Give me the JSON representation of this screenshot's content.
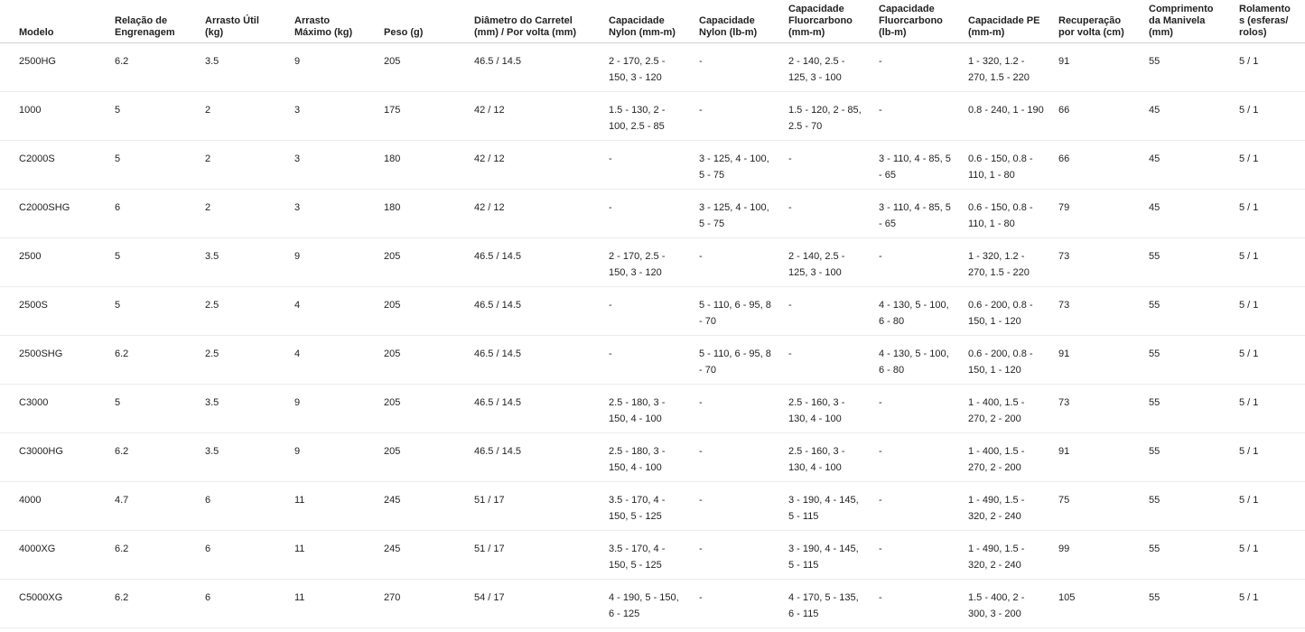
{
  "table": {
    "header": [
      "Modelo",
      "Relação de Engrenagem",
      "Arrasto Útil (kg)",
      "Arrasto Máximo (kg)",
      "Peso (g)",
      "Diâmetro do Carretel (mm) / Por volta (mm)",
      "Capacidade Nylon (mm-m)",
      "Capacidade Nylon (lb-m)",
      "Capacidade Fluorcarbono (mm-m)",
      "Capacidade Fluorcarbono (lb-m)",
      "Capacidade PE (mm-m)",
      "Recuperação por volta (cm)",
      "Comprimento da Manivela (mm)",
      "Rolamentos (esferas/ rolos)"
    ],
    "rows": [
      [
        "2500HG",
        "6.2",
        "3.5",
        "9",
        "205",
        "46.5 / 14.5",
        "2 - 170, 2.5 - 150, 3 - 120",
        "-",
        "2 - 140, 2.5 - 125, 3 - 100",
        "-",
        "1 - 320, 1.2 - 270, 1.5 - 220",
        "91",
        "55",
        "5 / 1"
      ],
      [
        "1000",
        "5",
        "2",
        "3",
        "175",
        "42 / 12",
        "1.5 - 130, 2 - 100, 2.5 - 85",
        "-",
        "1.5 - 120, 2 - 85, 2.5 - 70",
        "-",
        "0.8 - 240, 1 - 190",
        "66",
        "45",
        "5 / 1"
      ],
      [
        "C2000S",
        "5",
        "2",
        "3",
        "180",
        "42 / 12",
        "-",
        "3 - 125, 4 - 100, 5 - 75",
        "-",
        "3 - 110, 4 - 85, 5 - 65",
        "0.6 - 150, 0.8 - 110, 1 - 80",
        "66",
        "45",
        "5 / 1"
      ],
      [
        "C2000SHG",
        "6",
        "2",
        "3",
        "180",
        "42 / 12",
        "-",
        "3 - 125, 4 - 100, 5 - 75",
        "-",
        "3 - 110, 4 - 85, 5 - 65",
        "0.6 - 150, 0.8 - 110, 1 - 80",
        "79",
        "45",
        "5 / 1"
      ],
      [
        "2500",
        "5",
        "3.5",
        "9",
        "205",
        "46.5 / 14.5",
        "2 - 170, 2.5 - 150, 3 - 120",
        "-",
        "2 - 140, 2.5 - 125, 3 - 100",
        "-",
        "1 - 320, 1.2 - 270, 1.5 - 220",
        "73",
        "55",
        "5 / 1"
      ],
      [
        "2500S",
        "5",
        "2.5",
        "4",
        "205",
        "46.5 / 14.5",
        "-",
        "5 - 110, 6 - 95, 8 - 70",
        "-",
        "4 - 130, 5 - 100, 6 - 80",
        "0.6 - 200, 0.8 - 150, 1 - 120",
        "73",
        "55",
        "5 / 1"
      ],
      [
        "2500SHG",
        "6.2",
        "2.5",
        "4",
        "205",
        "46.5 / 14.5",
        "-",
        "5 - 110, 6 - 95, 8 - 70",
        "-",
        "4 - 130, 5 - 100, 6 - 80",
        "0.6 - 200, 0.8 - 150, 1 - 120",
        "91",
        "55",
        "5 / 1"
      ],
      [
        "C3000",
        "5",
        "3.5",
        "9",
        "205",
        "46.5 / 14.5",
        "2.5 - 180, 3 - 150, 4 - 100",
        "-",
        "2.5 - 160, 3 - 130, 4 - 100",
        "-",
        "1 - 400, 1.5 - 270, 2 - 200",
        "73",
        "55",
        "5 / 1"
      ],
      [
        "C3000HG",
        "6.2",
        "3.5",
        "9",
        "205",
        "46.5 / 14.5",
        "2.5 - 180, 3 - 150, 4 - 100",
        "-",
        "2.5 - 160, 3 - 130, 4 - 100",
        "-",
        "1 - 400, 1.5 - 270, 2 - 200",
        "91",
        "55",
        "5 / 1"
      ],
      [
        "4000",
        "4.7",
        "6",
        "11",
        "245",
        "51 / 17",
        "3.5 - 170, 4 - 150, 5 - 125",
        "-",
        "3 - 190, 4 - 145, 5 - 115",
        "-",
        "1 - 490, 1.5 - 320, 2 - 240",
        "75",
        "55",
        "5 / 1"
      ],
      [
        "4000XG",
        "6.2",
        "6",
        "11",
        "245",
        "51 / 17",
        "3.5 - 170, 4 - 150, 5 - 125",
        "-",
        "3 - 190, 4 - 145, 5 - 115",
        "-",
        "1 - 490, 1.5 - 320, 2 - 240",
        "99",
        "55",
        "5 / 1"
      ],
      [
        "C5000XG",
        "6.2",
        "6",
        "11",
        "270",
        "54 / 17",
        "4 - 190, 5 - 150, 6 - 125",
        "-",
        "4 - 170, 5 - 135, 6 - 115",
        "-",
        "1.5 - 400, 2 - 300, 3 - 200",
        "105",
        "55",
        "5 / 1"
      ]
    ]
  }
}
